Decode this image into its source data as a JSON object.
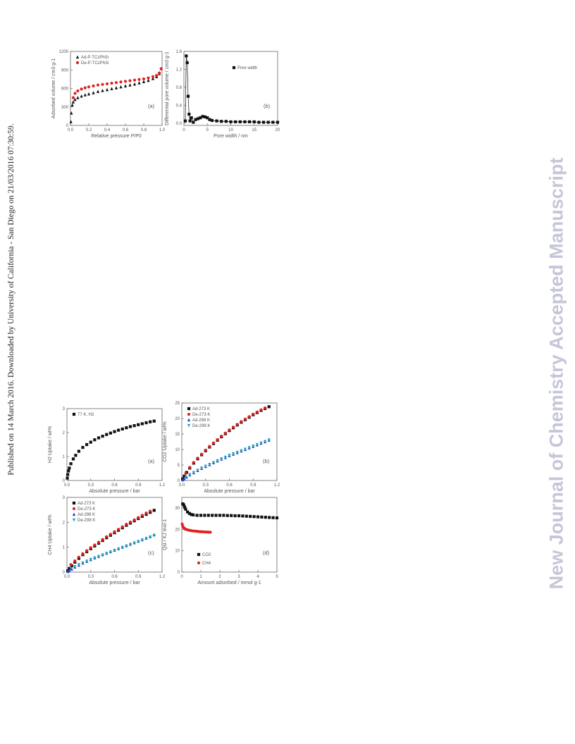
{
  "watermark_left": "Published on 14 March 2016. Downloaded by University of California - San Diego on 21/03/2016 07:30:59.",
  "watermark_right": "New Journal of Chemistry Accepted Manuscript",
  "colors": {
    "ad_black": "#111111",
    "de_red": "#e02020",
    "ad_blue": "#2040d0",
    "de_teal": "#20a0b0"
  },
  "chart_data": [
    {
      "type": "scatter",
      "panel_label": "(a)",
      "xlabel": "Relative pressure P/P0",
      "ylabel": "Adsorbed volume / cm3 g-1",
      "xlim": [
        0,
        1.0
      ],
      "ylim": [
        0,
        1200
      ],
      "xticks": [
        0.0,
        0.2,
        0.4,
        0.6,
        0.8,
        1.0
      ],
      "yticks": [
        0,
        300,
        600,
        900,
        1200
      ],
      "xtick_labels": [
        "0.0",
        "0.2",
        "0.4",
        "0.6",
        "0.8",
        "1.0"
      ],
      "ytick_labels": [
        "0",
        "300",
        "600",
        "900",
        "1200"
      ],
      "legend_position": "top-left",
      "series": [
        {
          "name": "Ad-P-TCzPhSi",
          "marker": "triangle",
          "color": "#111111",
          "x": [
            0.005,
            0.01,
            0.02,
            0.03,
            0.05,
            0.08,
            0.12,
            0.16,
            0.2,
            0.25,
            0.3,
            0.35,
            0.4,
            0.45,
            0.5,
            0.55,
            0.6,
            0.65,
            0.7,
            0.75,
            0.8,
            0.85,
            0.9,
            0.94,
            0.97,
            0.99
          ],
          "y": [
            60,
            200,
            330,
            380,
            420,
            450,
            475,
            495,
            510,
            530,
            550,
            565,
            580,
            595,
            610,
            625,
            640,
            655,
            670,
            690,
            710,
            730,
            760,
            790,
            840,
            920
          ]
        },
        {
          "name": "De-P-TCzPhSi",
          "marker": "circle",
          "color": "#e02020",
          "x": [
            0.03,
            0.05,
            0.08,
            0.12,
            0.16,
            0.2,
            0.25,
            0.3,
            0.35,
            0.4,
            0.45,
            0.5,
            0.55,
            0.6,
            0.65,
            0.7,
            0.75,
            0.8,
            0.85,
            0.9,
            0.94,
            0.97,
            0.99
          ],
          "y": [
            450,
            520,
            560,
            590,
            610,
            625,
            640,
            655,
            665,
            675,
            685,
            695,
            705,
            715,
            725,
            735,
            745,
            755,
            770,
            790,
            810,
            850,
            920
          ]
        }
      ]
    },
    {
      "type": "line",
      "panel_label": "(b)",
      "xlabel": "Pore width / nm",
      "ylabel": "Differential pore volume / cm3 g-1",
      "xlim": [
        0,
        20
      ],
      "ylim": [
        -0.05,
        1.6
      ],
      "xticks": [
        0,
        5,
        10,
        15,
        20
      ],
      "yticks": [
        0.0,
        0.4,
        0.8,
        1.2,
        1.6
      ],
      "xtick_labels": [
        "0",
        "5",
        "10",
        "15",
        "20"
      ],
      "ytick_labels": [
        "0.0",
        "0.4",
        "0.8",
        "1.2",
        "1.6"
      ],
      "legend_position": "top-right",
      "series": [
        {
          "name": "Pore width",
          "marker": "square",
          "color": "#111111",
          "x": [
            0.3,
            0.5,
            0.7,
            0.9,
            1.1,
            1.3,
            1.6,
            2.0,
            2.5,
            3.0,
            3.5,
            4.0,
            4.5,
            5.0,
            5.5,
            6.0,
            7.0,
            8.0,
            9.0,
            10.0,
            11.0,
            12.0,
            13.0,
            14.0,
            15.0,
            16.0,
            17.0,
            18.0,
            19.0,
            20.0
          ],
          "y": [
            0.05,
            1.5,
            1.35,
            0.6,
            0.2,
            0.05,
            0.12,
            0.02,
            0.08,
            0.1,
            0.12,
            0.15,
            0.14,
            0.12,
            0.08,
            0.06,
            0.05,
            0.04,
            0.04,
            0.03,
            0.03,
            0.03,
            0.03,
            0.03,
            0.03,
            0.02,
            0.02,
            0.02,
            0.02,
            0.02
          ]
        }
      ]
    },
    {
      "type": "scatter",
      "panel_label": "(a)",
      "xlabel": "Absolute pressure / bar",
      "ylabel": "H2 Uptake / wt%",
      "xlim": [
        0,
        1.2
      ],
      "ylim": [
        0,
        3
      ],
      "xticks": [
        0.0,
        0.3,
        0.6,
        0.9,
        1.2
      ],
      "yticks": [
        0,
        1,
        2,
        3
      ],
      "xtick_labels": [
        "0.0",
        "0.3",
        "0.6",
        "0.9",
        "1.2"
      ],
      "ytick_labels": [
        "0",
        "1",
        "2",
        "3"
      ],
      "legend_position": "top-left",
      "series": [
        {
          "name": "77 K, H2",
          "marker": "square",
          "color": "#111111",
          "x": [
            0.005,
            0.01,
            0.02,
            0.03,
            0.05,
            0.08,
            0.11,
            0.15,
            0.2,
            0.25,
            0.3,
            0.35,
            0.4,
            0.45,
            0.5,
            0.55,
            0.6,
            0.65,
            0.7,
            0.75,
            0.8,
            0.85,
            0.9,
            0.95,
            1.0,
            1.05,
            1.1
          ],
          "y": [
            0.1,
            0.25,
            0.4,
            0.52,
            0.7,
            0.9,
            1.05,
            1.22,
            1.38,
            1.5,
            1.6,
            1.7,
            1.78,
            1.85,
            1.92,
            1.98,
            2.04,
            2.1,
            2.15,
            2.2,
            2.25,
            2.29,
            2.33,
            2.37,
            2.41,
            2.45,
            2.48
          ]
        }
      ]
    },
    {
      "type": "scatter",
      "panel_label": "(b)",
      "xlabel": "Absolute pressure / bar",
      "ylabel": "CO2 Uptake / wt%",
      "xlim": [
        0,
        1.2
      ],
      "ylim": [
        0,
        25
      ],
      "xticks": [
        0.0,
        0.3,
        0.6,
        0.9,
        1.2
      ],
      "yticks": [
        0,
        5,
        10,
        15,
        20,
        25
      ],
      "xtick_labels": [
        "0.0",
        "0.3",
        "0.6",
        "0.9",
        "1.2"
      ],
      "ytick_labels": [
        "0",
        "5",
        "10",
        "15",
        "20",
        "25"
      ],
      "legend_position": "top-left",
      "series": [
        {
          "name": "Ad-273 K",
          "marker": "square",
          "color": "#111111",
          "x": [
            0.01,
            0.03,
            0.06,
            0.1,
            0.15,
            0.2,
            0.25,
            0.3,
            0.35,
            0.4,
            0.45,
            0.5,
            0.55,
            0.6,
            0.65,
            0.7,
            0.75,
            0.8,
            0.85,
            0.9,
            0.95,
            1.0,
            1.05,
            1.1
          ],
          "y": [
            0.5,
            1.4,
            2.6,
            4.0,
            5.6,
            7.0,
            8.3,
            9.6,
            10.8,
            11.9,
            13.0,
            14.1,
            15.1,
            16.1,
            17.0,
            17.9,
            18.8,
            19.6,
            20.4,
            21.2,
            21.9,
            22.6,
            23.2,
            23.8
          ]
        },
        {
          "name": "De-273 K",
          "marker": "circle",
          "color": "#e02020",
          "x": [
            0.05,
            0.1,
            0.15,
            0.2,
            0.25,
            0.3,
            0.35,
            0.4,
            0.45,
            0.5,
            0.55,
            0.6,
            0.65,
            0.7,
            0.75,
            0.8,
            0.85,
            0.9,
            0.95,
            1.0,
            1.05
          ],
          "y": [
            2.3,
            4.2,
            5.8,
            7.2,
            8.5,
            9.8,
            11.0,
            12.1,
            13.2,
            14.3,
            15.3,
            16.3,
            17.2,
            18.1,
            19.0,
            19.8,
            20.6,
            21.4,
            22.1,
            22.8,
            23.4
          ]
        },
        {
          "name": "Ad-298 K",
          "marker": "triangle",
          "color": "#2040d0",
          "x": [
            0.01,
            0.03,
            0.06,
            0.1,
            0.15,
            0.2,
            0.25,
            0.3,
            0.35,
            0.4,
            0.45,
            0.5,
            0.55,
            0.6,
            0.65,
            0.7,
            0.75,
            0.8,
            0.85,
            0.9,
            0.95,
            1.0,
            1.05,
            1.1
          ],
          "y": [
            0.2,
            0.6,
            1.1,
            1.8,
            2.5,
            3.2,
            3.9,
            4.5,
            5.1,
            5.7,
            6.3,
            6.9,
            7.4,
            8.0,
            8.5,
            9.0,
            9.5,
            10.0,
            10.5,
            11.0,
            11.5,
            12.0,
            12.5,
            13.0
          ]
        },
        {
          "name": "De-298 K",
          "marker": "triangle-down",
          "color": "#20a0b0",
          "x": [
            0.05,
            0.1,
            0.15,
            0.2,
            0.25,
            0.3,
            0.35,
            0.4,
            0.45,
            0.5,
            0.55,
            0.6,
            0.65,
            0.7,
            0.75,
            0.8,
            0.85,
            0.9,
            0.95,
            1.0,
            1.05,
            1.1
          ],
          "y": [
            1.0,
            1.9,
            2.6,
            3.3,
            4.0,
            4.6,
            5.2,
            5.8,
            6.4,
            7.0,
            7.5,
            8.1,
            8.6,
            9.1,
            9.6,
            10.1,
            10.6,
            11.1,
            11.6,
            12.1,
            12.6,
            13.1
          ]
        }
      ]
    },
    {
      "type": "scatter",
      "panel_label": "(c)",
      "xlabel": "Absolute pressure / bar",
      "ylabel": "CH4 Uptake / wt%",
      "xlim": [
        0,
        1.2
      ],
      "ylim": [
        0,
        3
      ],
      "xticks": [
        0.0,
        0.3,
        0.6,
        0.9,
        1.2
      ],
      "yticks": [
        0,
        1,
        2,
        3
      ],
      "xtick_labels": [
        "0.0",
        "0.3",
        "0.6",
        "0.9",
        "1.2"
      ],
      "ytick_labels": [
        "0",
        "1",
        "2",
        "3"
      ],
      "legend_position": "top-left",
      "series": [
        {
          "name": "Ad-273 K",
          "marker": "square",
          "color": "#111111",
          "x": [
            0.01,
            0.03,
            0.06,
            0.1,
            0.15,
            0.2,
            0.25,
            0.3,
            0.35,
            0.4,
            0.45,
            0.5,
            0.55,
            0.6,
            0.65,
            0.7,
            0.75,
            0.8,
            0.85,
            0.9,
            0.95,
            1.0,
            1.05,
            1.1
          ],
          "y": [
            0.05,
            0.15,
            0.25,
            0.4,
            0.55,
            0.7,
            0.82,
            0.94,
            1.05,
            1.16,
            1.27,
            1.38,
            1.48,
            1.58,
            1.68,
            1.78,
            1.88,
            1.97,
            2.06,
            2.15,
            2.24,
            2.32,
            2.4,
            2.48
          ]
        },
        {
          "name": "De-273 K",
          "marker": "circle",
          "color": "#e02020",
          "x": [
            0.05,
            0.1,
            0.15,
            0.2,
            0.25,
            0.3,
            0.35,
            0.4,
            0.45,
            0.5,
            0.55,
            0.6,
            0.65,
            0.7,
            0.75,
            0.8,
            0.85,
            0.9,
            0.95,
            1.0,
            1.05
          ],
          "y": [
            0.3,
            0.45,
            0.6,
            0.74,
            0.86,
            0.98,
            1.09,
            1.2,
            1.31,
            1.42,
            1.52,
            1.62,
            1.72,
            1.82,
            1.92,
            2.01,
            2.1,
            2.19,
            2.28,
            2.37,
            2.45
          ]
        },
        {
          "name": "Ad-298 K",
          "marker": "triangle",
          "color": "#2040d0",
          "x": [
            0.01,
            0.03,
            0.06,
            0.1,
            0.15,
            0.2,
            0.25,
            0.3,
            0.35,
            0.4,
            0.45,
            0.5,
            0.55,
            0.6,
            0.65,
            0.7,
            0.75,
            0.8,
            0.85,
            0.9,
            0.95,
            1.0,
            1.05,
            1.1
          ],
          "y": [
            0.02,
            0.06,
            0.12,
            0.2,
            0.28,
            0.36,
            0.43,
            0.5,
            0.57,
            0.63,
            0.7,
            0.76,
            0.82,
            0.88,
            0.94,
            1.0,
            1.06,
            1.12,
            1.18,
            1.24,
            1.3,
            1.36,
            1.42,
            1.5
          ]
        },
        {
          "name": "De-298 K",
          "marker": "triangle-down",
          "color": "#20a0b0",
          "x": [
            0.05,
            0.1,
            0.15,
            0.2,
            0.25,
            0.3,
            0.35,
            0.4,
            0.45,
            0.5,
            0.55,
            0.6,
            0.65,
            0.7,
            0.75,
            0.8,
            0.85,
            0.9,
            0.95,
            1.0,
            1.05,
            1.1
          ],
          "y": [
            0.15,
            0.22,
            0.3,
            0.37,
            0.44,
            0.51,
            0.57,
            0.63,
            0.69,
            0.75,
            0.81,
            0.87,
            0.93,
            0.99,
            1.05,
            1.11,
            1.17,
            1.23,
            1.29,
            1.35,
            1.41,
            1.47
          ]
        }
      ]
    },
    {
      "type": "scatter",
      "panel_label": "(d)",
      "xlabel": "Amount adsorbed / mmol g-1",
      "ylabel": "Qst / KJ mol-1",
      "xlim": [
        0,
        5
      ],
      "ylim": [
        0,
        35
      ],
      "xticks": [
        0,
        1,
        2,
        3,
        4,
        5
      ],
      "yticks": [
        0,
        10,
        20,
        30
      ],
      "xtick_labels": [
        "0",
        "1",
        "2",
        "3",
        "4",
        "5"
      ],
      "ytick_labels": [
        "0",
        "10",
        "20",
        "30"
      ],
      "legend_position": "bottom-left",
      "series": [
        {
          "name": "CO2",
          "marker": "square",
          "color": "#111111",
          "x": [
            0.05,
            0.1,
            0.15,
            0.2,
            0.3,
            0.4,
            0.5,
            0.6,
            0.8,
            1.0,
            1.2,
            1.4,
            1.6,
            1.8,
            2.0,
            2.2,
            2.4,
            2.6,
            2.8,
            3.0,
            3.2,
            3.4,
            3.6,
            3.8,
            4.0,
            4.2,
            4.4,
            4.6,
            4.8,
            5.0
          ],
          "y": [
            32,
            31.5,
            30.5,
            29.5,
            28.2,
            27.5,
            27.0,
            26.8,
            26.6,
            26.6,
            26.6,
            26.6,
            26.6,
            26.6,
            26.6,
            26.6,
            26.5,
            26.5,
            26.4,
            26.4,
            26.3,
            26.2,
            26.1,
            26.0,
            25.9,
            25.8,
            25.7,
            25.6,
            25.5,
            25.4
          ]
        },
        {
          "name": "CH4",
          "marker": "circle",
          "color": "#e02020",
          "x": [
            0.02,
            0.05,
            0.1,
            0.15,
            0.2,
            0.3,
            0.4,
            0.5,
            0.6,
            0.7,
            0.8,
            0.9,
            1.0,
            1.1,
            1.2,
            1.3,
            1.4,
            1.5
          ],
          "y": [
            22.5,
            21.5,
            20.8,
            20.4,
            20.1,
            19.8,
            19.6,
            19.4,
            19.3,
            19.2,
            19.1,
            19.0,
            18.9,
            18.9,
            18.8,
            18.8,
            18.7,
            18.7
          ]
        }
      ]
    }
  ]
}
